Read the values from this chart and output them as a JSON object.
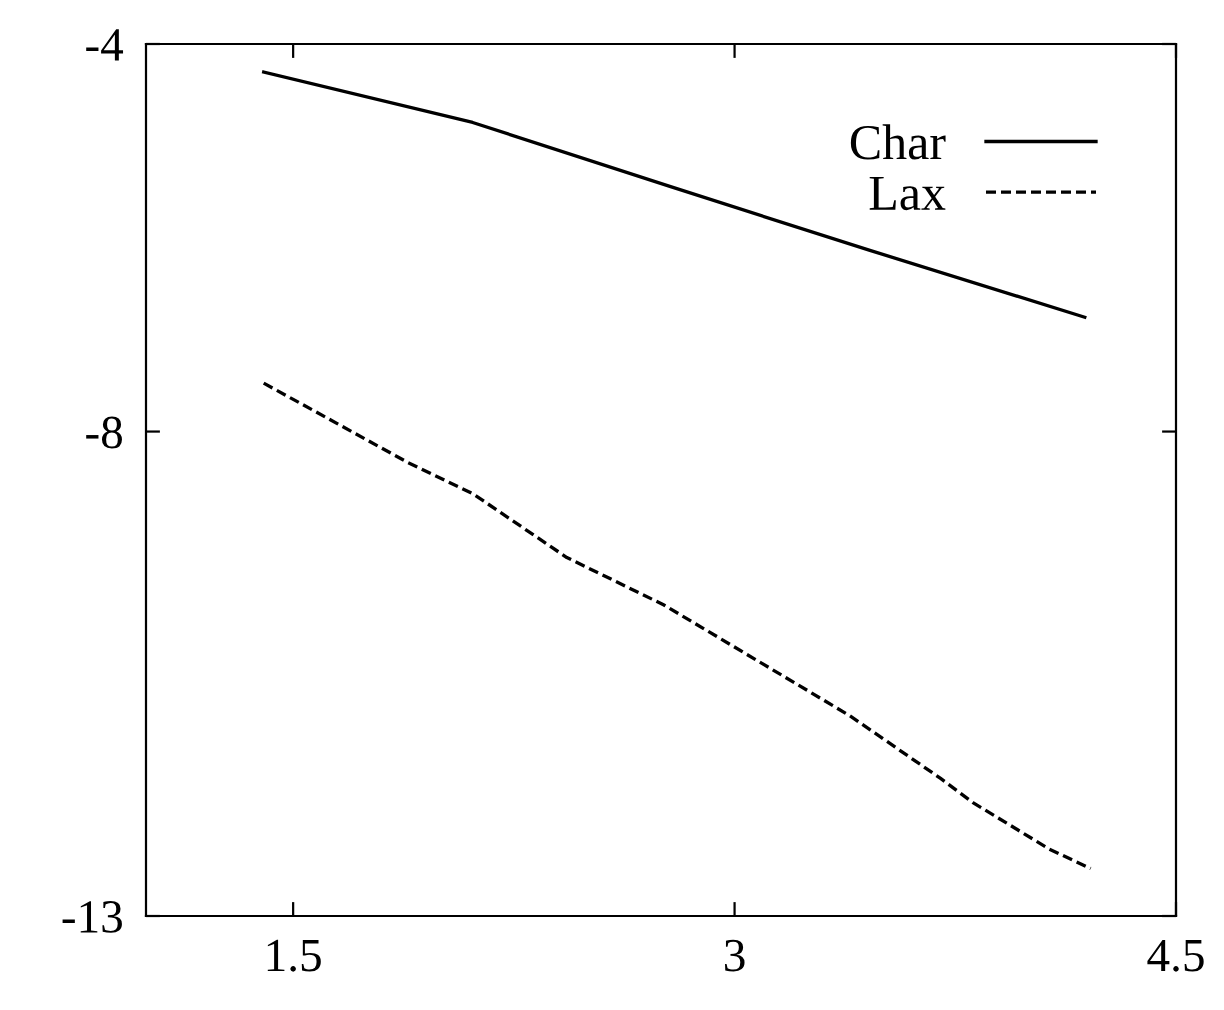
{
  "chart_data": {
    "type": "line",
    "xlim": [
      1,
      4.5
    ],
    "xticks": [
      1.5,
      3,
      4.5
    ],
    "ylim": [
      -13,
      -4
    ],
    "yticks": [
      -4,
      -8,
      -13
    ],
    "grid": false,
    "legend": "top right",
    "series": [
      {
        "name": "Char",
        "color": "#000000",
        "line_style": "solid",
        "x": [
          1.4,
          2.11,
          2.78,
          3.46,
          4.19
        ],
        "values": [
          -4.29,
          -4.81,
          -5.47,
          -6.13,
          -6.82
        ]
      },
      {
        "name": "Lax",
        "color": "#000000",
        "line_style": "dashed",
        "x": [
          1.4,
          1.89,
          2.11,
          2.43,
          2.76,
          3.39,
          3.7,
          3.81,
          4.07,
          4.21
        ],
        "values": [
          -7.5,
          -8.32,
          -8.64,
          -9.3,
          -9.79,
          -10.93,
          -11.58,
          -11.83,
          -12.31,
          -12.51
        ]
      }
    ]
  }
}
